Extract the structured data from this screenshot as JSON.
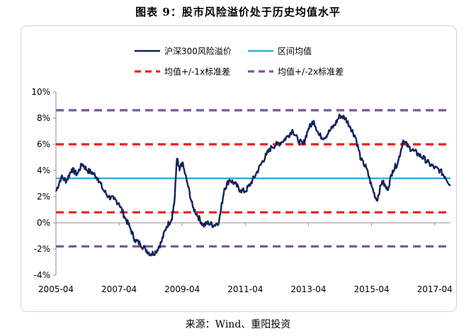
{
  "title": "图表 9：股市风险溢价处于历史均值水平",
  "source": "来源：Wind、重阳投资",
  "chart_data": {
    "type": "line",
    "title": "图表 9：股市风险溢价处于历史均值水平",
    "xlabel": "",
    "ylabel": "",
    "x_ticks": [
      "2005-04",
      "2007-04",
      "2009-04",
      "2011-04",
      "2013-04",
      "2015-04",
      "2017-04"
    ],
    "y_ticks": [
      "10%",
      "8%",
      "6%",
      "4%",
      "2%",
      "0%",
      "-2%",
      "-4%"
    ],
    "xlim": [
      "2005-04",
      "2017-10"
    ],
    "ylim": [
      -4,
      10
    ],
    "grid": false,
    "legend_position": "top",
    "series": [
      {
        "name": "沪深300风险溢价",
        "color": "#13235c",
        "style": "solid",
        "points": [
          [
            "2005-04",
            2.4
          ],
          [
            "2005-06",
            3.5
          ],
          [
            "2005-08",
            3.2
          ],
          [
            "2005-10",
            4.1
          ],
          [
            "2005-12",
            3.7
          ],
          [
            "2006-02",
            4.5
          ],
          [
            "2006-04",
            4.0
          ],
          [
            "2006-06",
            3.8
          ],
          [
            "2006-08",
            3.4
          ],
          [
            "2006-10",
            2.5
          ],
          [
            "2006-12",
            2.0
          ],
          [
            "2007-02",
            1.8
          ],
          [
            "2007-04",
            1.5
          ],
          [
            "2007-06",
            0.5
          ],
          [
            "2007-08",
            -0.3
          ],
          [
            "2007-10",
            -1.3
          ],
          [
            "2007-12",
            -1.6
          ],
          [
            "2008-02",
            -2.0
          ],
          [
            "2008-04",
            -2.4
          ],
          [
            "2008-06",
            -2.2
          ],
          [
            "2008-08",
            -1.5
          ],
          [
            "2008-10",
            -0.3
          ],
          [
            "2008-12",
            0.3
          ],
          [
            "2009-01",
            1.5
          ],
          [
            "2009-02",
            4.9
          ],
          [
            "2009-03",
            4.0
          ],
          [
            "2009-04",
            4.6
          ],
          [
            "2009-06",
            3.0
          ],
          [
            "2009-08",
            1.2
          ],
          [
            "2009-10",
            0.5
          ],
          [
            "2009-12",
            -0.2
          ],
          [
            "2010-02",
            0.0
          ],
          [
            "2010-04",
            -0.2
          ],
          [
            "2010-06",
            0.1
          ],
          [
            "2010-08",
            2.6
          ],
          [
            "2010-10",
            3.3
          ],
          [
            "2010-12",
            3.0
          ],
          [
            "2011-02",
            2.5
          ],
          [
            "2011-04",
            2.4
          ],
          [
            "2011-06",
            3.0
          ],
          [
            "2011-08",
            3.7
          ],
          [
            "2011-10",
            4.5
          ],
          [
            "2011-12",
            5.2
          ],
          [
            "2012-02",
            5.8
          ],
          [
            "2012-04",
            6.0
          ],
          [
            "2012-06",
            6.2
          ],
          [
            "2012-08",
            6.6
          ],
          [
            "2012-10",
            7.1
          ],
          [
            "2012-12",
            6.3
          ],
          [
            "2013-02",
            6.0
          ],
          [
            "2013-04",
            7.2
          ],
          [
            "2013-06",
            7.8
          ],
          [
            "2013-08",
            6.7
          ],
          [
            "2013-10",
            6.5
          ],
          [
            "2013-12",
            7.0
          ],
          [
            "2014-02",
            7.5
          ],
          [
            "2014-04",
            8.2
          ],
          [
            "2014-06",
            8.0
          ],
          [
            "2014-08",
            7.3
          ],
          [
            "2014-10",
            6.5
          ],
          [
            "2014-12",
            4.8
          ],
          [
            "2015-02",
            4.2
          ],
          [
            "2015-04",
            2.8
          ],
          [
            "2015-06",
            1.7
          ],
          [
            "2015-08",
            3.2
          ],
          [
            "2015-10",
            2.5
          ],
          [
            "2015-12",
            4.0
          ],
          [
            "2016-02",
            4.6
          ],
          [
            "2016-04",
            6.3
          ],
          [
            "2016-06",
            5.8
          ],
          [
            "2016-08",
            5.5
          ],
          [
            "2016-10",
            5.2
          ],
          [
            "2016-12",
            4.9
          ],
          [
            "2017-02",
            4.5
          ],
          [
            "2017-04",
            4.2
          ],
          [
            "2017-06",
            4.0
          ],
          [
            "2017-08",
            3.5
          ],
          [
            "2017-10",
            2.9
          ]
        ]
      },
      {
        "name": "区间均值",
        "color": "#2db0e6",
        "style": "solid",
        "value": 3.4
      },
      {
        "name": "均值+/-1x标准差",
        "color": "#ee1c1c",
        "style": "dashed",
        "values": [
          6.0,
          0.8
        ]
      },
      {
        "name": "均值+/-2x标准差",
        "color": "#7d52a0",
        "style": "dashed",
        "values": [
          8.6,
          -1.8
        ]
      }
    ]
  }
}
